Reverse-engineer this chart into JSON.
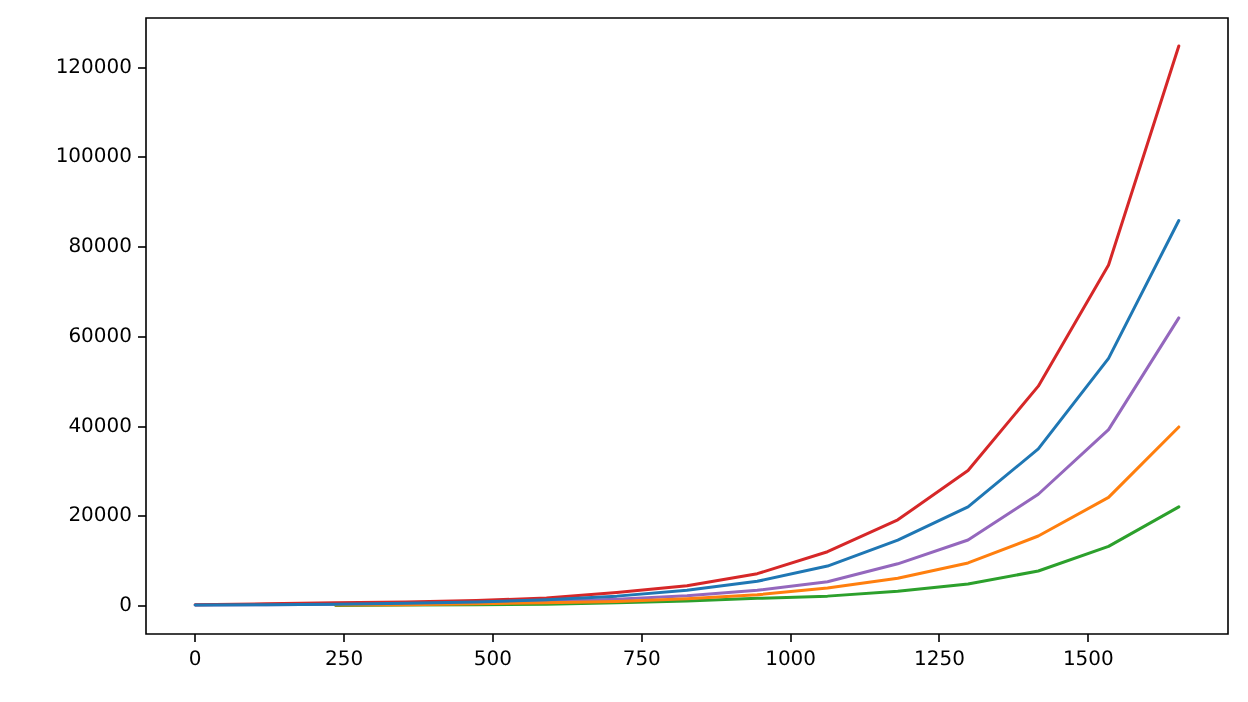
{
  "chart_data": {
    "type": "line",
    "x": [
      0,
      118,
      236,
      354,
      472,
      590,
      708,
      826,
      944,
      1062,
      1180,
      1298,
      1416,
      1534,
      1652
    ],
    "series": [
      {
        "color": "#1f77b4",
        "values": [
          200,
          300,
          400,
          600,
          900,
          1400,
          2200,
          3500,
          5500,
          8900,
          14700,
          22100,
          35000,
          55200,
          85900
        ]
      },
      {
        "color": "#ff7f0e",
        "values": [
          null,
          null,
          200,
          300,
          500,
          700,
          1000,
          1600,
          2500,
          4000,
          6200,
          9600,
          15600,
          24200,
          39900
        ]
      },
      {
        "color": "#2ca02c",
        "values": [
          null,
          null,
          100,
          200,
          300,
          400,
          700,
          1100,
          1700,
          2200,
          3300,
          4900,
          7800,
          13300,
          22100
        ]
      },
      {
        "color": "#d62728",
        "values": [
          300,
          500,
          700,
          900,
          1200,
          1800,
          3000,
          4500,
          7200,
          12100,
          19200,
          30200,
          49000,
          76000,
          124800
        ]
      },
      {
        "color": "#9467bd",
        "values": [
          200,
          300,
          400,
          500,
          700,
          1000,
          1500,
          2300,
          3500,
          5400,
          9400,
          14700,
          24900,
          39300,
          64200
        ]
      }
    ],
    "xlim": [
      -82.6,
      1734.6
    ],
    "xticks": [
      0,
      250,
      500,
      750,
      1000,
      1250,
      1500
    ],
    "ylim": [
      -6240,
      131040
    ],
    "yticks": [
      0,
      20000,
      40000,
      60000,
      80000,
      100000,
      120000
    ],
    "grid": false,
    "legend": false,
    "marker": "none",
    "line_style": "solid"
  }
}
